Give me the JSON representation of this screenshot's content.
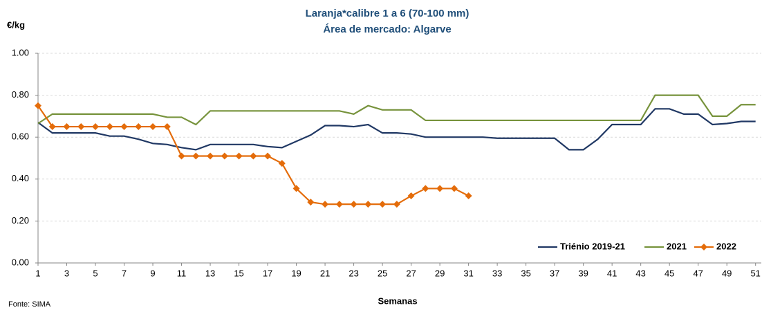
{
  "chart_data": {
    "type": "line",
    "title": "Laranja*calibre  1 a 6 (70-100 mm)",
    "subtitle": "Área de mercado: Algarve",
    "y_label": "€/kg",
    "x_label": "Semanas",
    "source": "Fonte: SIMA",
    "x": [
      1,
      2,
      3,
      4,
      5,
      6,
      7,
      8,
      9,
      10,
      11,
      12,
      13,
      14,
      15,
      16,
      17,
      18,
      19,
      20,
      21,
      22,
      23,
      24,
      25,
      26,
      27,
      28,
      29,
      30,
      31,
      32,
      33,
      34,
      35,
      36,
      37,
      38,
      39,
      40,
      41,
      42,
      43,
      44,
      45,
      46,
      47,
      48,
      49,
      50,
      51
    ],
    "series": [
      {
        "name": "Triénio 2019-21",
        "color": "#203864",
        "marker": "none",
        "values": [
          0.67,
          0.62,
          0.62,
          0.62,
          0.62,
          0.605,
          0.605,
          0.59,
          0.57,
          0.565,
          0.55,
          0.54,
          0.565,
          0.565,
          0.565,
          0.565,
          0.555,
          0.55,
          0.58,
          0.61,
          0.655,
          0.655,
          0.65,
          0.66,
          0.62,
          0.62,
          0.615,
          0.6,
          0.6,
          0.6,
          0.6,
          0.6,
          0.595,
          0.595,
          0.595,
          0.595,
          0.595,
          0.54,
          0.54,
          0.59,
          0.66,
          0.66,
          0.66,
          0.735,
          0.735,
          0.71,
          0.71,
          0.66,
          0.665,
          0.675,
          0.675
        ]
      },
      {
        "name": "2021",
        "color": "#77933c",
        "marker": "none",
        "values": [
          0.665,
          0.71,
          0.71,
          0.71,
          0.71,
          0.71,
          0.71,
          0.71,
          0.71,
          0.695,
          0.695,
          0.66,
          0.725,
          0.725,
          0.725,
          0.725,
          0.725,
          0.725,
          0.725,
          0.725,
          0.725,
          0.725,
          0.71,
          0.75,
          0.73,
          0.73,
          0.73,
          0.68,
          0.68,
          0.68,
          0.68,
          0.68,
          0.68,
          0.68,
          0.68,
          0.68,
          0.68,
          0.68,
          0.68,
          0.68,
          0.68,
          0.68,
          0.68,
          0.8,
          0.8,
          0.8,
          0.8,
          0.7,
          0.7,
          0.755,
          0.755
        ]
      },
      {
        "name": "2022",
        "color": "#e46c0a",
        "marker": "diamond",
        "values": [
          0.75,
          0.65,
          0.65,
          0.65,
          0.65,
          0.65,
          0.65,
          0.65,
          0.65,
          0.65,
          0.51,
          0.51,
          0.51,
          0.51,
          0.51,
          0.51,
          0.51,
          0.475,
          0.355,
          0.29,
          0.28,
          0.28,
          0.28,
          0.28,
          0.28,
          0.28,
          0.32,
          0.355,
          0.355,
          0.355,
          0.32,
          null,
          null,
          null,
          null,
          null,
          null,
          null,
          null,
          null,
          null,
          null,
          null,
          null,
          null,
          null,
          null,
          null,
          null,
          null,
          null
        ]
      }
    ],
    "xlim": [
      1,
      51.4
    ],
    "xticks": [
      1,
      3,
      5,
      7,
      9,
      11,
      13,
      15,
      17,
      19,
      21,
      23,
      25,
      27,
      29,
      31,
      33,
      35,
      37,
      39,
      41,
      43,
      45,
      47,
      49,
      51
    ],
    "ylim": [
      0,
      1
    ],
    "yticks": [
      {
        "value": 0,
        "label": "0.00"
      },
      {
        "value": 0.2,
        "label": "0.20"
      },
      {
        "value": 0.4,
        "label": "0.40"
      },
      {
        "value": 0.6,
        "label": "0.60"
      },
      {
        "value": 0.8,
        "label": "0.80"
      },
      {
        "value": 1,
        "label": "1.00"
      }
    ],
    "grid": true,
    "legend": "bottom-right"
  }
}
